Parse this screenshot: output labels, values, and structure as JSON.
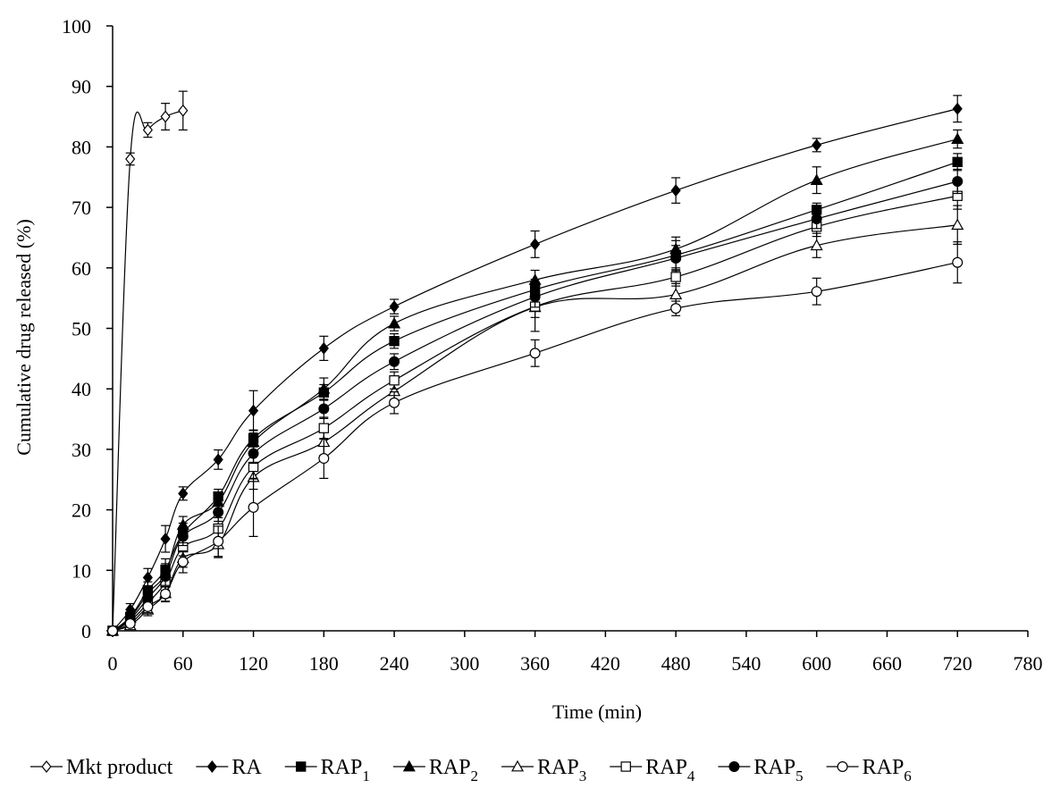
{
  "chart_data": {
    "type": "line",
    "xlabel": "Time (min)",
    "ylabel": "Cumulative drug released (%)",
    "xlim": [
      0,
      780
    ],
    "ylim": [
      0,
      100
    ],
    "xticks": [
      0,
      60,
      120,
      180,
      240,
      300,
      360,
      420,
      480,
      540,
      600,
      660,
      720,
      780
    ],
    "yticks": [
      0,
      10,
      20,
      30,
      40,
      50,
      60,
      70,
      80,
      90,
      100
    ],
    "grid": false,
    "legend_position": "bottom",
    "series": [
      {
        "name": "Mkt product",
        "marker": "diamond",
        "filled": false,
        "x": [
          0,
          15,
          30,
          45,
          60
        ],
        "y": [
          0,
          78,
          82.8,
          85,
          86
        ],
        "err": [
          0,
          1,
          1.2,
          2.2,
          3.2
        ]
      },
      {
        "name": "RA",
        "marker": "diamond",
        "filled": true,
        "x": [
          0,
          15,
          30,
          45,
          60,
          90,
          120,
          180,
          240,
          360,
          480,
          600,
          720
        ],
        "y": [
          0,
          3.5,
          8.8,
          15.2,
          22.7,
          28.3,
          36.4,
          46.7,
          53.6,
          63.9,
          72.8,
          80.3,
          86.3
        ],
        "err": [
          0,
          1,
          1.5,
          2.2,
          1.1,
          1.6,
          3.3,
          2,
          1.2,
          2.2,
          2.1,
          1.1,
          2.2
        ]
      },
      {
        "name": "RAP",
        "sub": "1",
        "marker": "square",
        "filled": true,
        "x": [
          0,
          15,
          30,
          45,
          60,
          90,
          120,
          180,
          240,
          360,
          480,
          600,
          720
        ],
        "y": [
          0,
          2.3,
          6.7,
          10.1,
          16.1,
          22.2,
          31.8,
          39.4,
          47.9,
          56.4,
          62.1,
          69.6,
          77.5
        ],
        "err": [
          0,
          0.8,
          1.4,
          1.8,
          1.7,
          1.2,
          1.4,
          1.3,
          1.2,
          1.7,
          2.4,
          1.1,
          1.4
        ]
      },
      {
        "name": "RAP",
        "sub": "2",
        "marker": "triangle",
        "filled": true,
        "x": [
          0,
          15,
          30,
          45,
          60,
          90,
          120,
          180,
          240,
          360,
          480,
          600,
          720
        ],
        "y": [
          0,
          2.1,
          6.2,
          9.5,
          17.5,
          21.3,
          31.2,
          40,
          50.8,
          58,
          63.1,
          74.5,
          81.3
        ],
        "err": [
          0,
          0.8,
          1.2,
          1.6,
          1.4,
          1.6,
          1.5,
          1.8,
          1.2,
          1.6,
          2,
          2.2,
          1.5
        ]
      },
      {
        "name": "RAP",
        "sub": "3",
        "marker": "triangle",
        "filled": false,
        "x": [
          0,
          15,
          30,
          45,
          60,
          90,
          120,
          180,
          240,
          360,
          480,
          600,
          720
        ],
        "y": [
          0,
          0.9,
          3.5,
          6.2,
          12,
          14.3,
          25.4,
          31.2,
          39.6,
          53.5,
          55.6,
          63.7,
          67.1
        ],
        "err": [
          0,
          0.5,
          1,
          1.4,
          1.5,
          2.2,
          2,
          2.2,
          1.4,
          4,
          1.8,
          2,
          3.2
        ]
      },
      {
        "name": "RAP",
        "sub": "4",
        "marker": "square",
        "filled": false,
        "x": [
          0,
          15,
          30,
          45,
          60,
          90,
          120,
          180,
          240,
          360,
          480,
          600,
          720
        ],
        "y": [
          0,
          1.6,
          4.6,
          8,
          13.8,
          16.9,
          27.1,
          33.5,
          41.4,
          53.6,
          58.5,
          66.8,
          71.9
        ],
        "err": [
          0,
          0.6,
          1.1,
          1.3,
          1.4,
          1.8,
          2,
          1.8,
          1.4,
          1.8,
          1.5,
          1.6,
          2.2
        ]
      },
      {
        "name": "RAP",
        "sub": "5",
        "marker": "circle",
        "filled": true,
        "x": [
          0,
          15,
          30,
          45,
          60,
          90,
          120,
          180,
          240,
          360,
          480,
          600,
          720
        ],
        "y": [
          0,
          1.9,
          5.4,
          9,
          15.6,
          19.6,
          29.3,
          36.7,
          44.5,
          55.2,
          61.6,
          68.1,
          74.3
        ],
        "err": [
          0,
          0.7,
          1.2,
          1.5,
          1.5,
          1.5,
          1.6,
          1.6,
          1.3,
          1.7,
          2.1,
          1.6,
          2
        ]
      },
      {
        "name": "RAP",
        "sub": "6",
        "marker": "circle",
        "filled": false,
        "x": [
          0,
          15,
          30,
          45,
          60,
          90,
          120,
          180,
          240,
          360,
          480,
          600,
          720
        ],
        "y": [
          0,
          1.2,
          4,
          6.1,
          11.4,
          14.8,
          20.4,
          28.5,
          37.7,
          45.9,
          53.3,
          56.1,
          60.9
        ],
        "err": [
          0,
          0.5,
          1,
          1.2,
          1.8,
          2.5,
          4.8,
          3.3,
          1.8,
          2.2,
          1.2,
          2.2,
          3.4
        ]
      }
    ]
  }
}
